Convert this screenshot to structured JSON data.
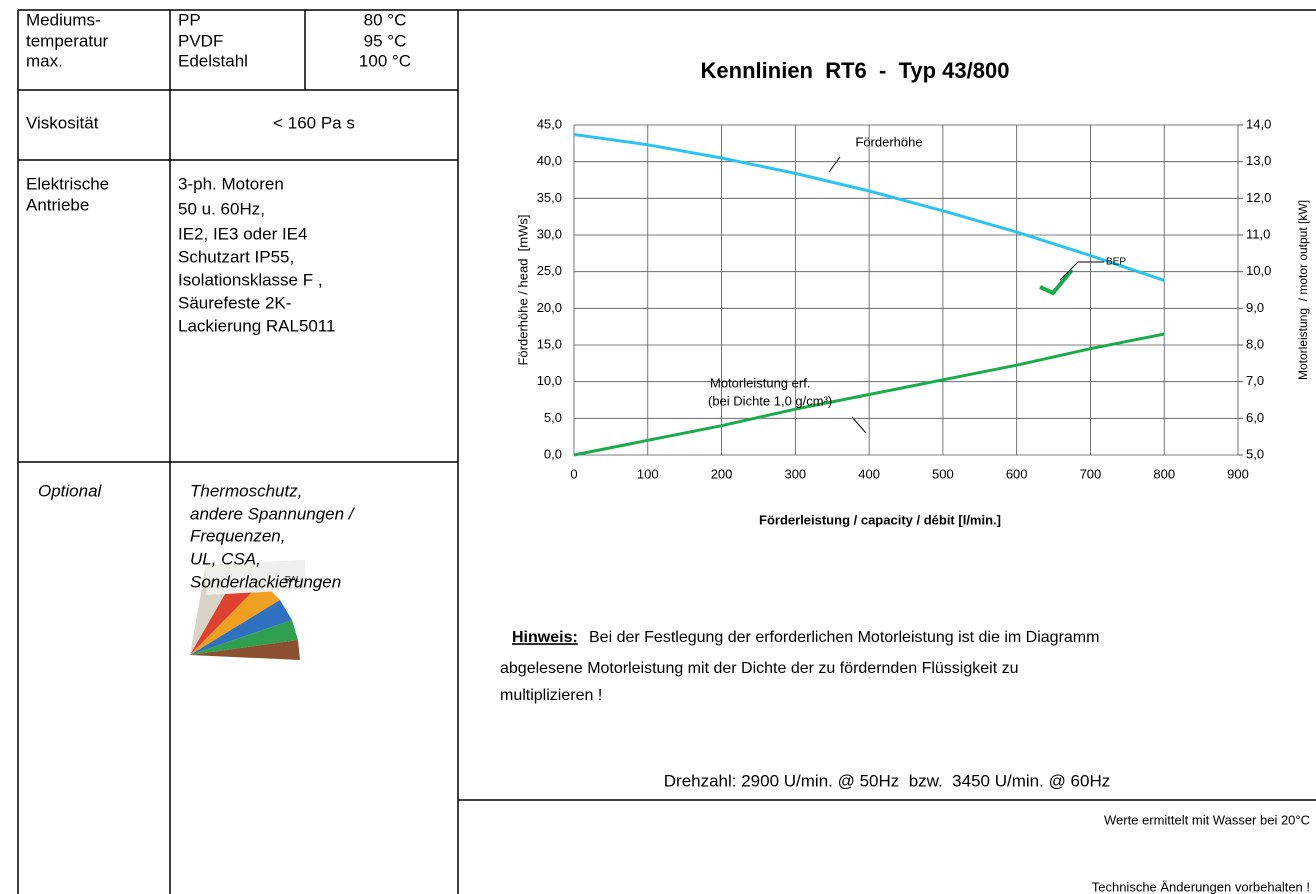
{
  "table": {
    "rows": [
      {
        "label": [
          "Mediums-",
          "temperatur",
          "max."
        ],
        "materials": [
          "PP",
          "PVDF",
          "Edelstahl"
        ],
        "temperatures": [
          "80 °C",
          "95 °C",
          "100 °C"
        ]
      },
      {
        "label": [
          "Viskosität"
        ],
        "value": [
          "< 160 Pa s"
        ]
      },
      {
        "label": [
          "Elektrische",
          "Antriebe"
        ],
        "value": [
          "3-ph. Motoren",
          "50 u. 60Hz,",
          "IE2, IE3 oder IE4",
          "Schutzart IP55,",
          "Isolationsklasse F ,",
          "Säurefeste 2K-",
          "Lackierung RAL5011"
        ]
      },
      {
        "label": [
          "Optional"
        ],
        "value": [
          "Thermoschutz,",
          "andere Spannungen /",
          "Frequenzen,",
          "UL, CSA,",
          "Sonderlackierungen"
        ]
      }
    ]
  },
  "chart_data": {
    "type": "line",
    "title": "Kennlinien  RT6  -  Typ 43/800",
    "x_label": "Förderleistung / capacity / débit [l/min.]",
    "y_label": "Förderhöhe / head  [mWs]",
    "y2_label": "Motorleistung  / motor output [kW]",
    "x": [
      0,
      100,
      200,
      300,
      400,
      500,
      600,
      700,
      800
    ],
    "series": [
      {
        "name": "Förderhöhe",
        "color": "#29c5f0",
        "values": [
          43.7,
          42.3,
          40.5,
          38.4,
          36.0,
          33.3,
          30.4,
          27.2,
          23.8
        ]
      },
      {
        "name": "Motorleistung erf.",
        "color": "#1aab4a",
        "axis": "y2",
        "values": [
          5.0,
          5.4,
          5.8,
          6.25,
          6.65,
          7.05,
          7.45,
          7.9,
          8.3
        ]
      }
    ],
    "annotations": [
      "(bei Dichte 1,0 g/cm³)",
      "BEP"
    ],
    "xlim": [
      0,
      900
    ],
    "xticks": [
      0,
      100,
      200,
      300,
      400,
      500,
      600,
      700,
      800,
      900
    ],
    "ylim": [
      0,
      45
    ],
    "yticks": [
      {
        "value": 0,
        "label": "0,0"
      },
      {
        "value": 5,
        "label": "5,0"
      },
      {
        "value": 10,
        "label": "10,0"
      },
      {
        "value": 15,
        "label": "15,0"
      },
      {
        "value": 20,
        "label": "20,0"
      },
      {
        "value": 25,
        "label": "25,0"
      },
      {
        "value": 30,
        "label": "30,0"
      },
      {
        "value": 35,
        "label": "35,0"
      },
      {
        "value": 40,
        "label": "40,0"
      },
      {
        "value": 45,
        "label": "45,0"
      }
    ],
    "y2lim": [
      5,
      14
    ],
    "y2ticks": [
      {
        "value": 5,
        "label": "5,0"
      },
      {
        "value": 6,
        "label": "6,0"
      },
      {
        "value": 7,
        "label": "7,0"
      },
      {
        "value": 8,
        "label": "8,0"
      },
      {
        "value": 9,
        "label": "9,0"
      },
      {
        "value": 10,
        "label": "10,0"
      },
      {
        "value": 11,
        "label": "11,0"
      },
      {
        "value": 12,
        "label": "12,0"
      },
      {
        "value": 13,
        "label": "13,0"
      },
      {
        "value": 14,
        "label": "14,0"
      }
    ],
    "grid": true
  },
  "notes": {
    "hint_label": "Hinweis:",
    "hint": [
      "Bei der Festlegung der erforderlichen Motorleistung ist die im Diagramm",
      "abgelesene Motorleistung mit der Dichte der zu fördernden Flüssigkeit zu",
      "multiplizieren !"
    ],
    "speed": "Drehzahl: 2900 U/min. @ 50Hz  bzw.  3450 U/min. @ 60Hz",
    "test_conditions": "Werte ermittelt mit Wasser bei 20°C",
    "disclaimer": "Technische Änderungen vorbehalten !"
  }
}
